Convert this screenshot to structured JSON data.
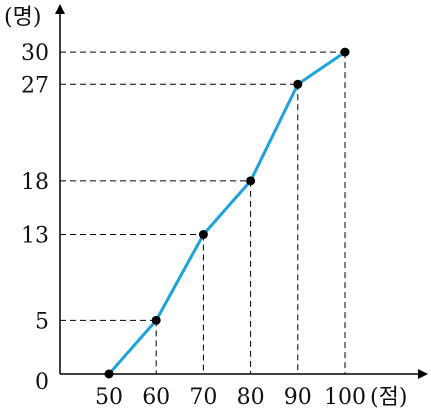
{
  "chart_data": {
    "type": "line",
    "x": [
      50,
      60,
      70,
      80,
      90,
      100
    ],
    "y": [
      0,
      5,
      13,
      18,
      27,
      30
    ],
    "x_ticks": [
      "50",
      "60",
      "70",
      "80",
      "90",
      "100"
    ],
    "y_ticks": [
      "0",
      "5",
      "13",
      "18",
      "27",
      "30"
    ],
    "xlabel": "(점)",
    "ylabel": "(명)",
    "series": [
      {
        "values": [
          0,
          5,
          13,
          18,
          27,
          30
        ]
      }
    ],
    "grid": false,
    "guide_lines": "dashed",
    "colors": {
      "line": "#1ca3dc",
      "point": "#000000",
      "axis": "#000000"
    }
  }
}
